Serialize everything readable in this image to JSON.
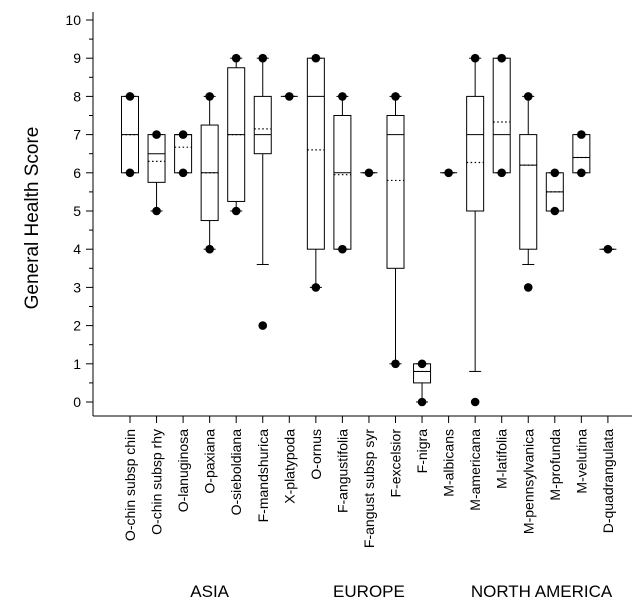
{
  "chart_data": {
    "type": "box",
    "ylabel": "General Health Score",
    "xlabel": "",
    "ylim": [
      0,
      10
    ],
    "yticks": [
      0,
      1,
      2,
      3,
      4,
      5,
      6,
      7,
      8,
      9,
      10
    ],
    "grid": false,
    "groups": [
      {
        "label": "ASIA",
        "first": 0,
        "last": 6
      },
      {
        "label": "EUROPE",
        "first": 7,
        "last": 11
      },
      {
        "label": "NORTH AMERICA",
        "first": 12,
        "last": 19
      }
    ],
    "boxes": [
      {
        "label": "O-chin subsp chin",
        "whisker_low": 6,
        "q1": 6,
        "median": 7,
        "mean": 7,
        "q3": 8,
        "whisker_high": 8,
        "outliers": [
          6,
          8
        ]
      },
      {
        "label": "O-chin subsp rhy",
        "whisker_low": 5,
        "q1": 5.75,
        "median": 6.5,
        "mean": 6.3,
        "q3": 7,
        "whisker_high": 7,
        "outliers": [
          5,
          7
        ]
      },
      {
        "label": "O-lanuginosa",
        "whisker_low": 6,
        "q1": 6,
        "median": 7,
        "mean": 6.67,
        "q3": 7,
        "whisker_high": 7,
        "outliers": [
          6,
          7
        ]
      },
      {
        "label": "O-paxiana",
        "whisker_low": 4,
        "q1": 4.75,
        "median": 6,
        "mean": 6,
        "q3": 7.25,
        "whisker_high": 8,
        "outliers": [
          4,
          8
        ]
      },
      {
        "label": "O-sieboldiana",
        "whisker_low": 5,
        "q1": 5.25,
        "median": 7,
        "mean": 7,
        "q3": 8.75,
        "whisker_high": 9,
        "outliers": [
          5,
          9
        ]
      },
      {
        "label": "F-mandshurica",
        "whisker_low": 3.6,
        "q1": 6.5,
        "median": 7,
        "mean": 7.15,
        "q3": 8,
        "whisker_high": 9,
        "outliers": [
          2,
          9
        ]
      },
      {
        "label": "X-platypoda",
        "whisker_low": 8,
        "q1": 8,
        "median": 8,
        "mean": 8,
        "q3": 8,
        "whisker_high": 8,
        "outliers": [
          8
        ]
      },
      {
        "label": "O-ornus",
        "whisker_low": 3,
        "q1": 4,
        "median": 8,
        "mean": 6.6,
        "q3": 9,
        "whisker_high": 9,
        "outliers": [
          3,
          9
        ]
      },
      {
        "label": "F-angustifolia",
        "whisker_low": 4,
        "q1": 4,
        "median": 6,
        "mean": 5.95,
        "q3": 7.5,
        "whisker_high": 8,
        "outliers": [
          4,
          8
        ]
      },
      {
        "label": "F-angust subsp syr",
        "whisker_low": 6,
        "q1": 6,
        "median": 6,
        "mean": 6,
        "q3": 6,
        "whisker_high": 6,
        "outliers": [
          6
        ]
      },
      {
        "label": "F-excelsior",
        "whisker_low": 1,
        "q1": 3.5,
        "median": 7,
        "mean": 5.8,
        "q3": 7.5,
        "whisker_high": 8,
        "outliers": [
          1,
          8
        ]
      },
      {
        "label": "F-nigra",
        "whisker_low": 0,
        "q1": 0.5,
        "median": 0.8,
        "mean": 0.8,
        "q3": 1,
        "whisker_high": 1,
        "outliers": [
          0,
          1
        ]
      },
      {
        "label": "M-albicans",
        "whisker_low": 6,
        "q1": 6,
        "median": 6,
        "mean": 6,
        "q3": 6,
        "whisker_high": 6,
        "outliers": [
          6
        ]
      },
      {
        "label": "M-americana",
        "whisker_low": 0.8,
        "q1": 5,
        "median": 7,
        "mean": 6.27,
        "q3": 8,
        "whisker_high": 9,
        "outliers": [
          0,
          9
        ]
      },
      {
        "label": "M-latifolia",
        "whisker_low": 6,
        "q1": 6,
        "median": 7,
        "mean": 7.33,
        "q3": 9,
        "whisker_high": 9,
        "outliers": [
          6,
          9
        ]
      },
      {
        "label": "M-pennsylvanica",
        "whisker_low": 3.6,
        "q1": 4,
        "median": 6.2,
        "mean": 6.2,
        "q3": 7,
        "whisker_high": 8,
        "outliers": [
          3,
          8
        ]
      },
      {
        "label": "M-profunda",
        "whisker_low": 5,
        "q1": 5,
        "median": 5.5,
        "mean": 5.5,
        "q3": 6,
        "whisker_high": 6,
        "outliers": [
          5,
          6
        ]
      },
      {
        "label": "M-velutina",
        "whisker_low": 6,
        "q1": 6,
        "median": 6.4,
        "mean": 6.4,
        "q3": 7,
        "whisker_high": 7,
        "outliers": [
          6,
          7
        ]
      },
      {
        "label": "D-quadrangulata",
        "whisker_low": 4,
        "q1": 4,
        "median": 4,
        "mean": 4,
        "q3": 4,
        "whisker_high": 4,
        "outliers": [
          4
        ]
      }
    ]
  }
}
